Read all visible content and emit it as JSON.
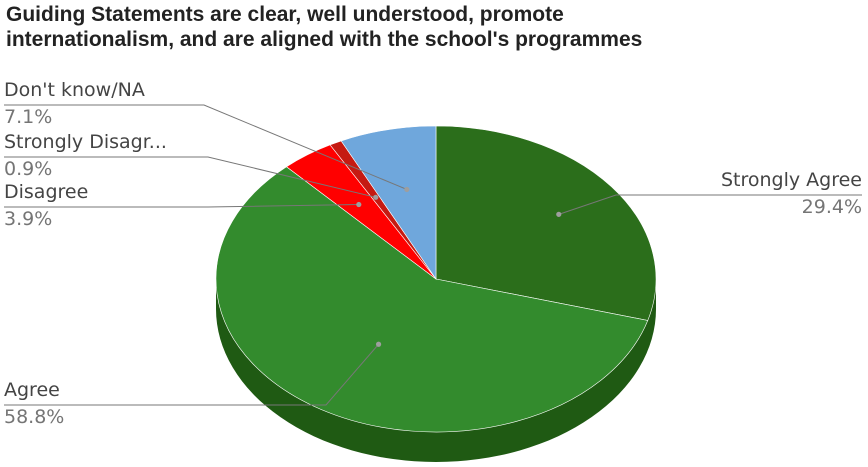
{
  "title_line1": "Guiding Statements are clear, well understood, promote",
  "title_line2": "internationalism, and are aligned with the school's programmes",
  "chart_data": {
    "type": "pie",
    "title": "Guiding Statements are clear, well understood, promote internationalism, and are aligned with the school's programmes",
    "three_d": true,
    "legend": "labeled",
    "slices": [
      {
        "label": "Strongly Agree",
        "shown_label": "Strongly Agree",
        "value": 29.4,
        "percent_text": "29.4%",
        "color": "#2b6e1b"
      },
      {
        "label": "Agree",
        "shown_label": "Agree",
        "value": 58.8,
        "percent_text": "58.8%",
        "color": "#338b2d"
      },
      {
        "label": "Disagree",
        "shown_label": "Disagree",
        "value": 3.9,
        "percent_text": "3.9%",
        "color": "#ff0000"
      },
      {
        "label": "Strongly Disagree",
        "shown_label": "Strongly Disagr...",
        "value": 0.9,
        "percent_text": "0.9%",
        "color": "#c51a12"
      },
      {
        "label": "Don't know/NA",
        "shown_label": "Don't know/NA",
        "value": 7.1,
        "percent_text": "7.1%",
        "color": "#6fa7dc"
      }
    ]
  }
}
